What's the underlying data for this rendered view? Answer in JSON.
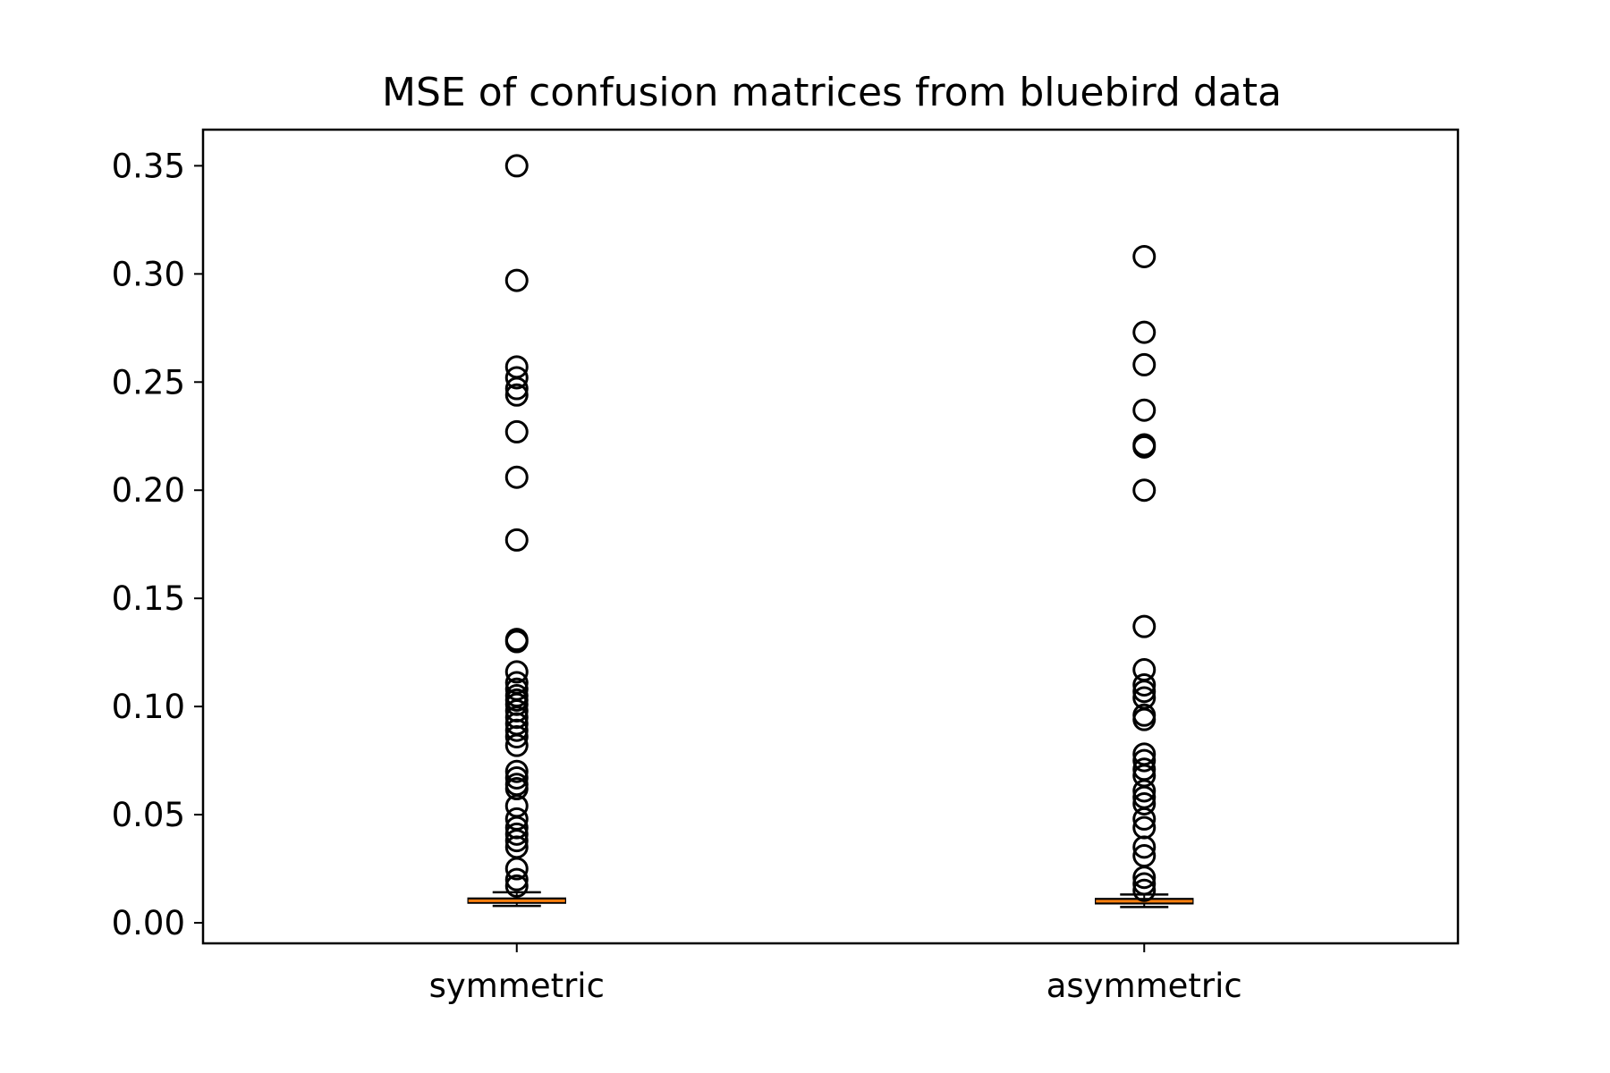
{
  "chart_data": {
    "type": "box",
    "title": "MSE of confusion matrices from bluebird data",
    "xlabel": "",
    "ylabel": "",
    "ylim": [
      -0.0095,
      0.3667
    ],
    "yticks": [
      0.0,
      0.05,
      0.1,
      0.15,
      0.2,
      0.25,
      0.3,
      0.35
    ],
    "ytick_labels": [
      "0.00",
      "0.05",
      "0.10",
      "0.15",
      "0.20",
      "0.25",
      "0.30",
      "0.35"
    ],
    "categories": [
      "symmetric",
      "asymmetric"
    ],
    "grid": false,
    "colors": {
      "median": "#ff7f0e",
      "box": "#000000",
      "flier": "#000000"
    },
    "boxes": [
      {
        "name": "symmetric",
        "whisker_low": 0.0078,
        "q1": 0.0093,
        "median": 0.0102,
        "q3": 0.0112,
        "whisker_high": 0.0141,
        "fliers": [
          0.35,
          0.297,
          0.257,
          0.252,
          0.247,
          0.244,
          0.227,
          0.206,
          0.177,
          0.131,
          0.13,
          0.116,
          0.111,
          0.108,
          0.105,
          0.103,
          0.101,
          0.098,
          0.095,
          0.092,
          0.089,
          0.086,
          0.082,
          0.07,
          0.067,
          0.064,
          0.062,
          0.054,
          0.048,
          0.044,
          0.041,
          0.038,
          0.035,
          0.025,
          0.02,
          0.017
        ]
      },
      {
        "name": "asymmetric",
        "whisker_low": 0.0073,
        "q1": 0.009,
        "median": 0.01,
        "q3": 0.011,
        "whisker_high": 0.0131,
        "fliers": [
          0.308,
          0.273,
          0.258,
          0.237,
          0.221,
          0.22,
          0.2,
          0.137,
          0.117,
          0.11,
          0.107,
          0.104,
          0.096,
          0.094,
          0.078,
          0.075,
          0.071,
          0.068,
          0.061,
          0.058,
          0.055,
          0.048,
          0.044,
          0.035,
          0.031,
          0.021,
          0.018,
          0.015
        ]
      }
    ]
  }
}
